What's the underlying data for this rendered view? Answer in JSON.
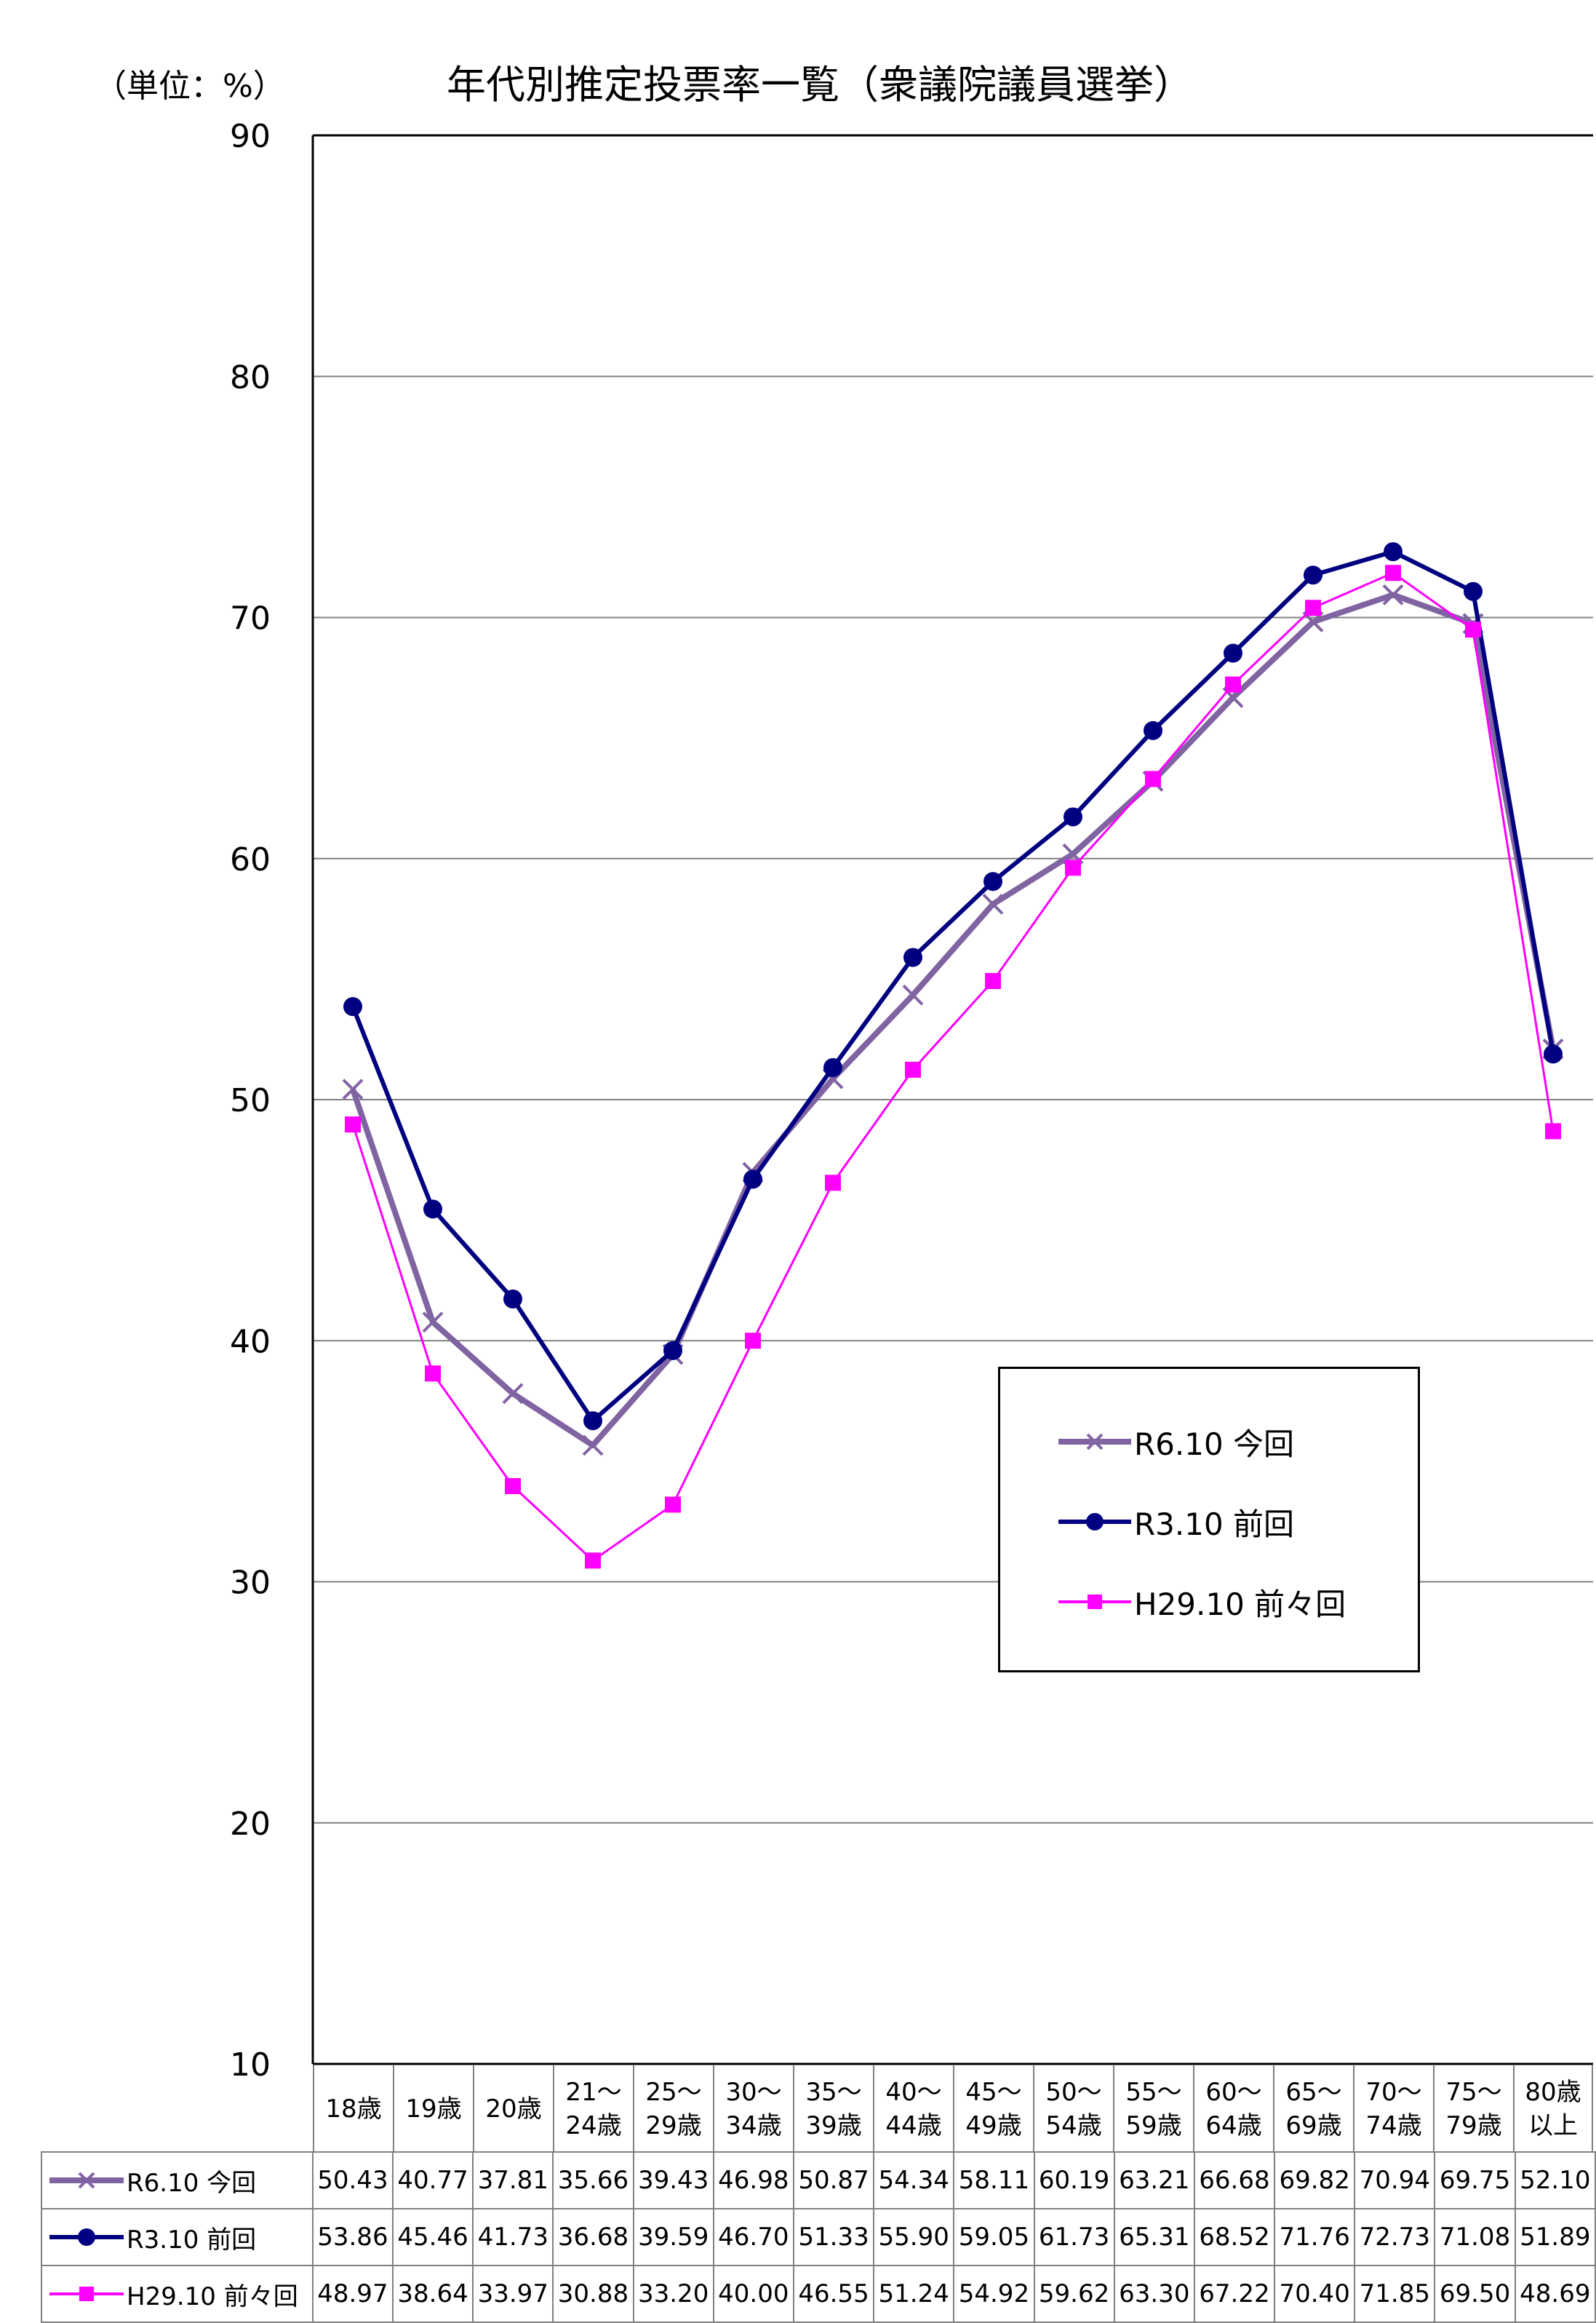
{
  "unit_label": "（単位：%）",
  "chart_data": {
    "type": "line",
    "title": "年代別推定投票率一覧（衆議院議員選挙）",
    "categories": [
      "18歳",
      "19歳",
      "20歳",
      "21〜\n24歳",
      "25〜\n29歳",
      "30〜\n34歳",
      "35〜\n39歳",
      "40〜\n44歳",
      "45〜\n49歳",
      "50〜\n54歳",
      "55〜\n59歳",
      "60〜\n64歳",
      "65〜\n69歳",
      "70〜\n74歳",
      "75〜\n79歳",
      "80歳\n以上"
    ],
    "ylim": [
      10,
      90
    ],
    "yticks": [
      "10",
      "20",
      "30",
      "40",
      "50",
      "60",
      "70",
      "80",
      "90"
    ],
    "grid": true,
    "legend_position": "lower-right inside plot",
    "series": [
      {
        "name": "R6.10 今回",
        "marker": "x",
        "color": "#8064A2",
        "values": [
          "50.43",
          "40.77",
          "37.81",
          "35.66",
          "39.43",
          "46.98",
          "50.87",
          "54.34",
          "58.11",
          "60.19",
          "63.21",
          "66.68",
          "69.82",
          "70.94",
          "69.75",
          "52.10"
        ]
      },
      {
        "name": "R3.10 前回",
        "marker": "circle",
        "color": "#000080",
        "values": [
          "53.86",
          "45.46",
          "41.73",
          "36.68",
          "39.59",
          "46.70",
          "51.33",
          "55.90",
          "59.05",
          "61.73",
          "65.31",
          "68.52",
          "71.76",
          "72.73",
          "71.08",
          "51.89"
        ]
      },
      {
        "name": "H29.10 前々回",
        "marker": "square",
        "color": "#FF00FF",
        "values": [
          "48.97",
          "38.64",
          "33.97",
          "30.88",
          "33.20",
          "40.00",
          "46.55",
          "51.24",
          "54.92",
          "59.62",
          "63.30",
          "67.22",
          "70.40",
          "71.85",
          "69.50",
          "48.69"
        ]
      }
    ]
  }
}
